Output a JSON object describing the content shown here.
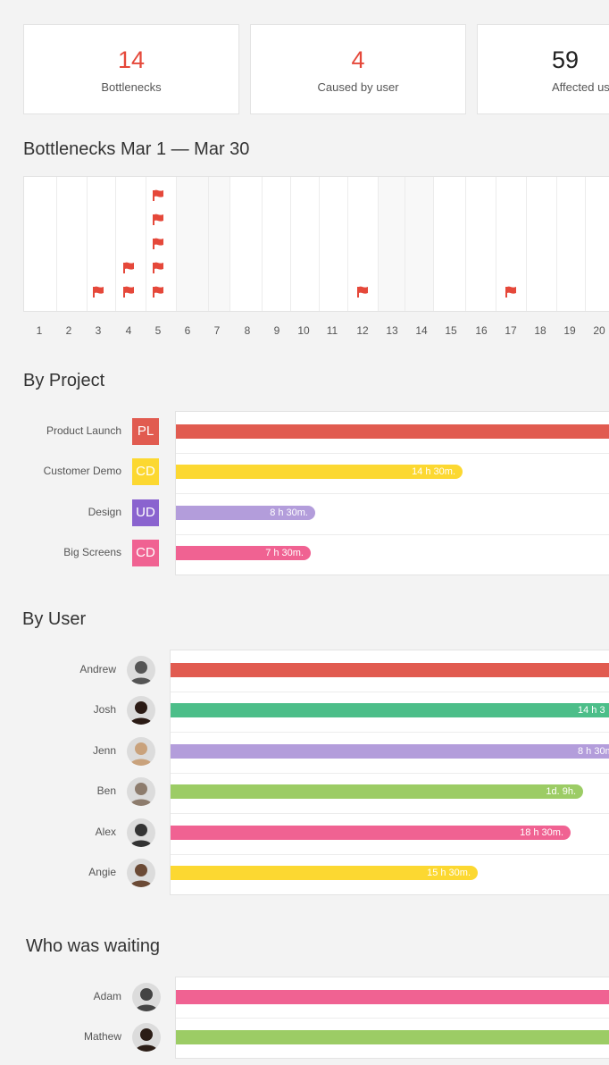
{
  "stats": [
    {
      "value": "14",
      "label": "Bottlenecks",
      "color": "#e5483a"
    },
    {
      "value": "4",
      "label": "Caused by user",
      "color": "#e5483a"
    },
    {
      "value": "59",
      "label": "Affected us",
      "color": "#222222"
    }
  ],
  "bottlenecks": {
    "title": "Bottlenecks Mar 1 — Mar 30",
    "days": [
      "1",
      "2",
      "3",
      "4",
      "5",
      "6",
      "7",
      "8",
      "9",
      "10",
      "11",
      "12",
      "13",
      "14",
      "15",
      "16",
      "17",
      "18",
      "19",
      "20"
    ],
    "flags_per_day": [
      0,
      0,
      1,
      2,
      5,
      0,
      0,
      0,
      0,
      0,
      0,
      1,
      0,
      0,
      0,
      0,
      1,
      0,
      0,
      0
    ],
    "weekend_days": [
      6,
      7,
      13,
      14
    ],
    "flag_color": "#e5483a"
  },
  "by_project": {
    "title": "By Project",
    "rows": [
      {
        "label": "Product Launch",
        "badge": "PL",
        "color": "#e15b50",
        "bar_label": "",
        "fraction": 1.0
      },
      {
        "label": "Customer Demo",
        "badge": "CD",
        "color": "#fcd831",
        "bar_label": "14 h 30m.",
        "fraction": 0.66
      },
      {
        "label": "Design",
        "badge": "UD",
        "color": "#8a63cf",
        "bar_color": "#b39ddb",
        "bar_label": "8 h 30m.",
        "fraction": 0.32
      },
      {
        "label": "Big Screens",
        "badge": "CD",
        "color": "#f06292",
        "bar_label": "7 h 30m.",
        "fraction": 0.31
      }
    ]
  },
  "by_user": {
    "title": "By User",
    "rows": [
      {
        "label": "Andrew",
        "color": "#e15b50",
        "bar_label": "",
        "fraction": 1.0,
        "avatar": "#555"
      },
      {
        "label": "Josh",
        "color": "#4cbe89",
        "bar_label": "14 h 3",
        "fraction": 1.0,
        "avatar": "#2a1a14"
      },
      {
        "label": "Jenn",
        "color": "#b39ddb",
        "bar_label": "8 h 30m.",
        "fraction": 1.0,
        "avatar": "#c9a27c"
      },
      {
        "label": "Ben",
        "color": "#9ccc65",
        "bar_label": "1d. 9h.",
        "fraction": 0.94,
        "avatar": "#8d7c6d"
      },
      {
        "label": "Alex",
        "color": "#f06292",
        "bar_label": "18 h 30m.",
        "fraction": 0.91,
        "avatar": "#333"
      },
      {
        "label": "Angie",
        "color": "#fcd831",
        "bar_label": "15 h 30m.",
        "fraction": 0.7,
        "avatar": "#6b4a35"
      }
    ]
  },
  "who_waiting": {
    "title": "Who was waiting",
    "rows": [
      {
        "label": "Adam",
        "color": "#f06292",
        "bar_label": "",
        "fraction": 1.0,
        "avatar": "#444"
      },
      {
        "label": "Mathew",
        "color": "#9ccc65",
        "bar_label": "",
        "fraction": 1.0,
        "avatar": "#2b1d16"
      }
    ]
  }
}
